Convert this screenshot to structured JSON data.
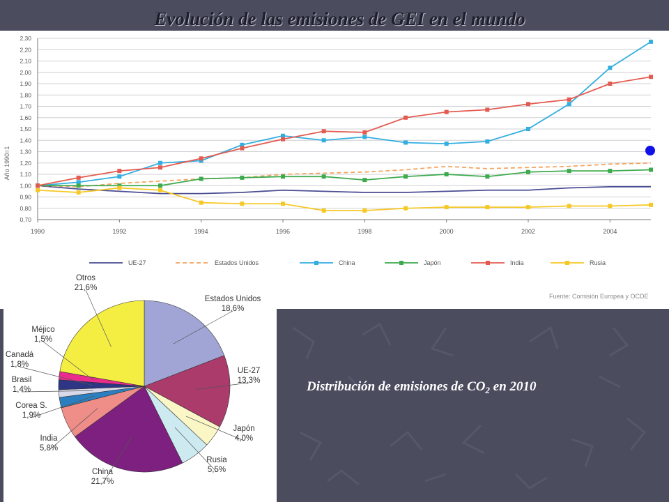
{
  "slide": {
    "title": "Evolución de las emisiones de GEI en el mundo",
    "caption_prefix": "Distribución de emisiones de CO",
    "caption_sub": "2",
    "caption_suffix": " en 2010",
    "accent_dot_color": "#1010e8"
  },
  "chart_data": [
    {
      "type": "line",
      "ylabel": "Año 1990=1",
      "source": "Fuente: Comisión Europea y OCDE",
      "x": [
        1990,
        1991,
        1992,
        1993,
        1994,
        1995,
        1996,
        1997,
        1998,
        1999,
        2000,
        2001,
        2002,
        2003,
        2004,
        2005
      ],
      "x_ticks": [
        "1990",
        "1992",
        "1994",
        "1996",
        "1998",
        "2000",
        "2002",
        "2004"
      ],
      "ylim": [
        0.7,
        2.3
      ],
      "y_ticks": [
        "0,70",
        "0,80",
        "0,90",
        "1,00",
        "1,10",
        "1,20",
        "1,30",
        "1,40",
        "1,50",
        "1,60",
        "1,70",
        "1,80",
        "1,90",
        "2,00",
        "2,10",
        "2,20",
        "2,30"
      ],
      "legend_position": "bottom",
      "grid": true,
      "series": [
        {
          "name": "UE-27",
          "color": "#4a4d93",
          "style": "solid",
          "markers": false,
          "values": [
            1.0,
            0.97,
            0.95,
            0.93,
            0.93,
            0.94,
            0.96,
            0.95,
            0.94,
            0.94,
            0.95,
            0.96,
            0.96,
            0.98,
            0.99,
            0.99
          ]
        },
        {
          "name": "Estados Unidos",
          "color": "#f4a460",
          "style": "dashed",
          "markers": false,
          "values": [
            1.0,
            0.99,
            1.02,
            1.04,
            1.06,
            1.07,
            1.1,
            1.11,
            1.12,
            1.14,
            1.17,
            1.15,
            1.16,
            1.17,
            1.19,
            1.2
          ]
        },
        {
          "name": "China",
          "color": "#33aee0",
          "style": "solid",
          "markers": true,
          "values": [
            1.0,
            1.03,
            1.08,
            1.2,
            1.22,
            1.36,
            1.44,
            1.4,
            1.43,
            1.38,
            1.37,
            1.39,
            1.5,
            1.72,
            2.04,
            2.27
          ]
        },
        {
          "name": "Japón",
          "color": "#3daa4e",
          "style": "solid",
          "markers": true,
          "values": [
            1.0,
            1.0,
            1.0,
            1.0,
            1.06,
            1.07,
            1.08,
            1.08,
            1.05,
            1.08,
            1.1,
            1.08,
            1.12,
            1.13,
            1.13,
            1.14
          ]
        },
        {
          "name": "India",
          "color": "#e35b50",
          "style": "solid",
          "markers": true,
          "values": [
            1.0,
            1.07,
            1.13,
            1.16,
            1.24,
            1.33,
            1.41,
            1.48,
            1.47,
            1.6,
            1.65,
            1.67,
            1.72,
            1.76,
            1.9,
            1.96
          ]
        },
        {
          "name": "Rusia",
          "color": "#f6c826",
          "style": "solid",
          "markers": true,
          "values": [
            0.96,
            0.94,
            0.98,
            0.96,
            0.85,
            0.84,
            0.84,
            0.78,
            0.78,
            0.8,
            0.81,
            0.81,
            0.81,
            0.82,
            0.82,
            0.83
          ]
        }
      ]
    },
    {
      "type": "pie",
      "slices": [
        {
          "name": "Estados Unidos",
          "label": "18,6%",
          "value": 18.6,
          "color": "#a1a5d6"
        },
        {
          "name": "UE-27",
          "label": "13,3%",
          "value": 13.3,
          "color": "#ab3b6a"
        },
        {
          "name": "Japón",
          "label": "4,0%",
          "value": 4.0,
          "color": "#fbf6c6"
        },
        {
          "name": "Rusia",
          "label": "5,5%",
          "value": 5.5,
          "color": "#cdeaf1"
        },
        {
          "name": "China",
          "label": "21,7%",
          "value": 21.7,
          "color": "#7d2080"
        },
        {
          "name": "India",
          "label": "5,8%",
          "value": 5.8,
          "color": "#ef8d88"
        },
        {
          "name": "Corea S.",
          "label": "1,9%",
          "value": 1.9,
          "color": "#2b7fc1"
        },
        {
          "name": "Brasil",
          "label": "1,4%",
          "value": 1.4,
          "color": "#d7d8ea"
        },
        {
          "name": "Canadá",
          "label": "1,8%",
          "value": 1.8,
          "color": "#2e3584"
        },
        {
          "name": "Méjico",
          "label": "1,5%",
          "value": 1.5,
          "color": "#ea2c8d"
        },
        {
          "name": "Otros",
          "label": "21,6%",
          "value": 21.6,
          "color": "#f5ee42"
        }
      ]
    }
  ]
}
